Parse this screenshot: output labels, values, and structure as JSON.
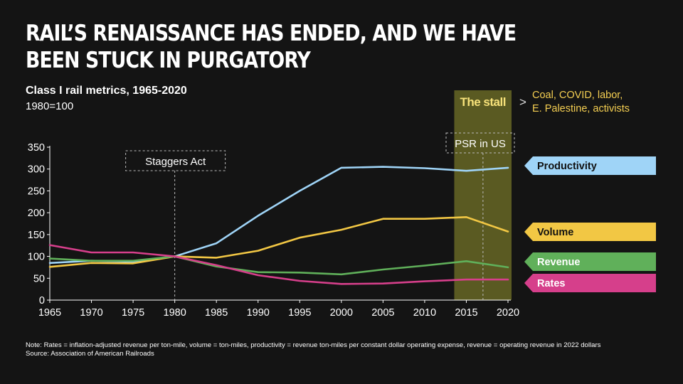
{
  "headline": "RAIL’S RENAISSANCE HAS ENDED, AND WE HAVE BEEN STUCK IN PURGATORY",
  "subtitle": "Class I rail metrics, 1965-2020",
  "index_note": "1980=100",
  "footnote": {
    "note": "Note: Rates = inflation-adjusted revenue per ton-mile, volume = ton-miles, productivity = revenue ton-miles per constant dollar operating expense, revenue = operating revenue in 2022 dollars",
    "source": "Source: Association of American Railroads"
  },
  "chart_data": {
    "type": "line",
    "title": "Class I rail metrics, 1965-2020",
    "x": [
      1965,
      1970,
      1975,
      1980,
      1985,
      1990,
      1995,
      2000,
      2005,
      2010,
      2015,
      2020
    ],
    "xticks": [
      "1965",
      "1970",
      "1975",
      "1980",
      "1985",
      "1990",
      "1995",
      "2000",
      "2005",
      "2010",
      "2015",
      "2020"
    ],
    "yticks": [
      "0",
      "50",
      "100",
      "150",
      "200",
      "250",
      "300",
      "350"
    ],
    "xlim": [
      1965,
      2020
    ],
    "ylim": [
      0,
      350
    ],
    "grid": false,
    "series": [
      {
        "name": "Productivity",
        "color": "#9fd4f7",
        "values": [
          85,
          90,
          88,
          100,
          130,
          193,
          250,
          303,
          305,
          302,
          296,
          303
        ]
      },
      {
        "name": "Volume",
        "color": "#f2c744",
        "values": [
          76,
          85,
          84,
          100,
          97,
          113,
          143,
          161,
          186,
          186,
          190,
          157
        ]
      },
      {
        "name": "Revenue",
        "color": "#60b05a",
        "values": [
          95,
          90,
          90,
          100,
          77,
          64,
          63,
          59,
          70,
          79,
          89,
          75
        ]
      },
      {
        "name": "Rates",
        "color": "#d63f8b",
        "values": [
          126,
          109,
          109,
          100,
          80,
          57,
          44,
          37,
          38,
          43,
          47,
          47
        ]
      }
    ],
    "annotations": {
      "staggers": {
        "label": "Staggers Act",
        "year": 1980
      },
      "psr": {
        "label": "PSR in US",
        "year": 2017
      },
      "stall": {
        "label": "The stall",
        "from": 2015,
        "to": 2020,
        "color": "#5a5a22",
        "label_color": "#f7e27a"
      },
      "stall_causes": {
        "arrow": ">",
        "lines": [
          "Coal, COVID, labor,",
          "E. Palestine, activists"
        ],
        "color": "#f5cf52"
      }
    }
  }
}
